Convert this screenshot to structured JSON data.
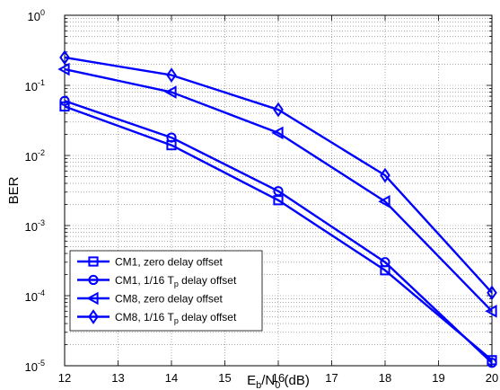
{
  "chart_data": {
    "type": "line",
    "xlabel": {
      "main": "E",
      "sub1": "b",
      "mid": "/N",
      "sub2": "0",
      "tail": " (dB)"
    },
    "ylabel": "BER",
    "xlim": [
      12,
      20
    ],
    "ylim": [
      1e-05,
      1
    ],
    "yscale": "log",
    "grid": true,
    "grid_style": "dotted",
    "xticks": [
      12,
      13,
      14,
      15,
      16,
      17,
      18,
      19,
      20
    ],
    "xtick_labels": [
      "12",
      "13",
      "14",
      "15",
      "16",
      "17",
      "18",
      "19",
      "20"
    ],
    "yticks": [
      {
        "base": "10",
        "exp": "-5"
      },
      {
        "base": "10",
        "exp": "-4"
      },
      {
        "base": "10",
        "exp": "-3"
      },
      {
        "base": "10",
        "exp": "-2"
      },
      {
        "base": "10",
        "exp": "-1"
      },
      {
        "base": "10",
        "exp": "0"
      }
    ],
    "line_color": "#0000ff",
    "legend_position": "bottom-left",
    "series": [
      {
        "name": "CM1, zero delay offset",
        "marker": "square",
        "x": [
          12,
          14,
          16,
          18,
          20
        ],
        "y": [
          0.05,
          0.014,
          0.0023,
          0.00023,
          1.2e-05
        ]
      },
      {
        "name": "CM1, 1/16 T_p delay offset",
        "marker": "circle",
        "x": [
          12,
          14,
          16,
          18,
          20
        ],
        "y": [
          0.06,
          0.018,
          0.0031,
          0.0003,
          1.1e-05
        ]
      },
      {
        "name": "CM8, zero delay offset",
        "marker": "triangle-left",
        "x": [
          12,
          14,
          16,
          18,
          20
        ],
        "y": [
          0.17,
          0.08,
          0.021,
          0.0022,
          6e-05
        ]
      },
      {
        "name": "CM8, 1/16 T_p delay offset",
        "marker": "diamond",
        "x": [
          12,
          14,
          16,
          18,
          20
        ],
        "y": [
          0.25,
          0.14,
          0.045,
          0.0052,
          0.00011
        ]
      }
    ],
    "legend": [
      {
        "text": "CM1, zero delay offset"
      },
      {
        "pre": "CM1, 1/16 T",
        "sub": "p",
        "post": " delay offset"
      },
      {
        "text": "CM8, zero delay offset"
      },
      {
        "pre": "CM8, 1/16 T",
        "sub": "p",
        "post": " delay offset"
      }
    ]
  }
}
